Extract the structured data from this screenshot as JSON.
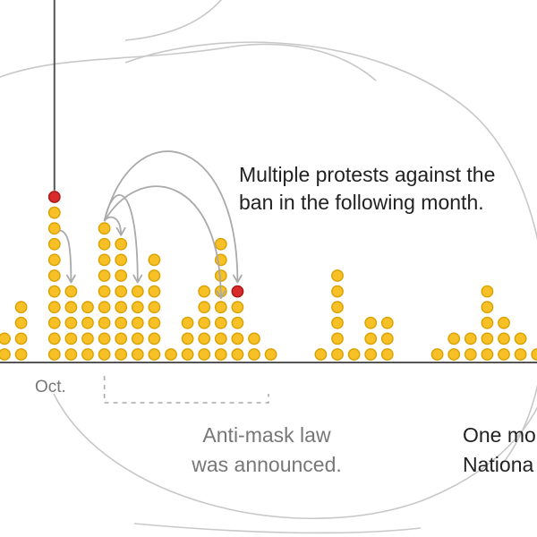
{
  "chart_data": {
    "type": "bar",
    "unit": "dot",
    "counts": [
      2,
      4,
      0,
      11,
      5,
      4,
      9,
      8,
      5,
      7,
      1,
      3,
      5,
      8,
      5,
      2,
      1,
      0,
      0,
      1,
      6,
      1,
      3,
      3,
      0,
      0,
      1,
      2,
      2,
      5,
      3,
      2,
      1
    ],
    "highlighted": [
      {
        "column": 3,
        "level": 11
      },
      {
        "column": 14,
        "level": 5
      }
    ],
    "colors": {
      "dot_fill": "#f6c026",
      "dot_stroke": "#d9a100",
      "highlight_fill": "#d92b2b",
      "highlight_stroke": "#a81515",
      "axis": "#555555",
      "arrow": "#aaaaaa",
      "curve": "#c8c8c8",
      "dashed": "#aaaaaa",
      "text_dark": "#222222",
      "text_gray": "#777777"
    },
    "x_tick": "Oct.",
    "annotations": {
      "protests": [
        "Multiple protests against the",
        "ban in the following month."
      ],
      "law": [
        "Anti-mask law",
        "was announced."
      ],
      "right": [
        "One mo",
        "Nationa"
      ]
    }
  }
}
